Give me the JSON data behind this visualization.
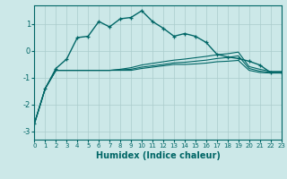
{
  "xlabel": "Humidex (Indice chaleur)",
  "background_color": "#cce8e8",
  "grid_color": "#aacccc",
  "line_color": "#006666",
  "xlim": [
    0,
    23
  ],
  "ylim": [
    -3.3,
    1.7
  ],
  "yticks": [
    -3,
    -2,
    -1,
    0,
    1
  ],
  "xticks": [
    0,
    1,
    2,
    3,
    4,
    5,
    6,
    7,
    8,
    9,
    10,
    11,
    12,
    13,
    14,
    15,
    16,
    17,
    18,
    19,
    20,
    21,
    22,
    23
  ],
  "series1_x": [
    0,
    1,
    2,
    3,
    4,
    5,
    6,
    7,
    8,
    9,
    10,
    11,
    12,
    13,
    14,
    15,
    16,
    17,
    18,
    19,
    20,
    21,
    22,
    23
  ],
  "series1_y": [
    -2.7,
    -1.4,
    -0.72,
    -0.72,
    -0.72,
    -0.72,
    -0.72,
    -0.72,
    -0.72,
    -0.72,
    -0.65,
    -0.6,
    -0.55,
    -0.5,
    -0.5,
    -0.48,
    -0.45,
    -0.4,
    -0.38,
    -0.35,
    -0.72,
    -0.8,
    -0.82,
    -0.82
  ],
  "series2_x": [
    0,
    1,
    2,
    3,
    4,
    5,
    6,
    7,
    8,
    9,
    10,
    11,
    12,
    13,
    14,
    15,
    16,
    17,
    18,
    19,
    20,
    21,
    22,
    23
  ],
  "series2_y": [
    -2.7,
    -1.4,
    -0.72,
    -0.72,
    -0.72,
    -0.72,
    -0.72,
    -0.72,
    -0.7,
    -0.68,
    -0.6,
    -0.55,
    -0.5,
    -0.44,
    -0.42,
    -0.38,
    -0.34,
    -0.28,
    -0.24,
    -0.18,
    -0.65,
    -0.75,
    -0.8,
    -0.8
  ],
  "series3_x": [
    0,
    1,
    2,
    3,
    4,
    5,
    6,
    7,
    8,
    9,
    10,
    11,
    12,
    13,
    14,
    15,
    16,
    17,
    18,
    19,
    20,
    21,
    22,
    23
  ],
  "series3_y": [
    -2.7,
    -1.4,
    -0.72,
    -0.72,
    -0.72,
    -0.72,
    -0.72,
    -0.72,
    -0.68,
    -0.62,
    -0.52,
    -0.46,
    -0.4,
    -0.34,
    -0.3,
    -0.25,
    -0.2,
    -0.14,
    -0.1,
    -0.04,
    -0.58,
    -0.68,
    -0.76,
    -0.76
  ],
  "series_main_x": [
    0,
    1,
    2,
    3,
    4,
    5,
    6,
    7,
    8,
    9,
    10,
    11,
    12,
    13,
    14,
    15,
    16,
    17,
    18,
    19,
    20,
    21,
    22,
    23
  ],
  "series_main_y": [
    -2.7,
    -1.4,
    -0.65,
    -0.3,
    0.5,
    0.55,
    1.1,
    0.9,
    1.2,
    1.25,
    1.5,
    1.1,
    0.85,
    0.55,
    0.65,
    0.55,
    0.32,
    -0.12,
    -0.22,
    -0.28,
    -0.38,
    -0.52,
    -0.8,
    -0.8
  ]
}
